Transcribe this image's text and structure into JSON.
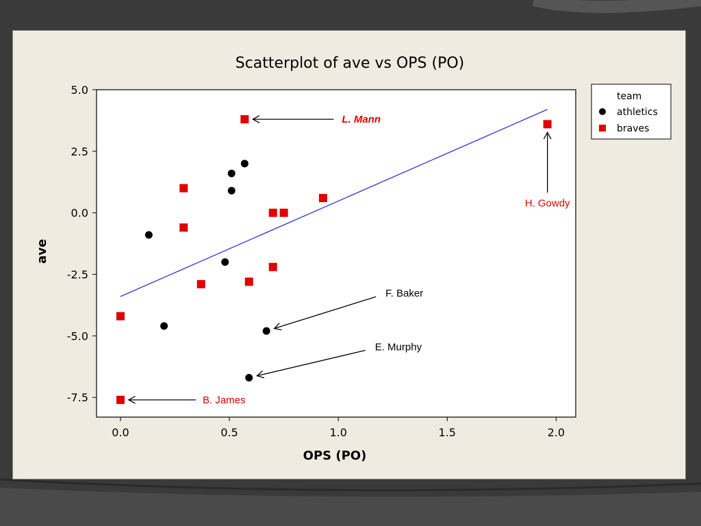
{
  "colors": {
    "background": "#3a3a3a",
    "panel": "#f0ebe1",
    "athletics": "#000000",
    "braves": "#e00000",
    "fit_line": "#3333dd",
    "annotation_red": "#e00000",
    "annotation_black": "#000000"
  },
  "chart_data": {
    "type": "scatter",
    "title": "Scatterplot of ave vs OPS (PO)",
    "xlabel": "OPS (PO)",
    "ylabel": "ave",
    "xlim": [
      -0.11,
      2.09
    ],
    "ylim": [
      -8.3,
      5.0
    ],
    "x_ticks": [
      "0.0",
      "0.5",
      "1.0",
      "1.5",
      "2.0"
    ],
    "y_ticks": [
      "5.0",
      "2.5",
      "0.0",
      "-2.5",
      "-5.0",
      "-7.5"
    ],
    "grid": false,
    "legend": {
      "title": "team",
      "position": "right",
      "entries": [
        {
          "label": "athletics",
          "marker": "circle",
          "color": "#000000"
        },
        {
          "label": "braves",
          "marker": "square",
          "color": "#e00000"
        }
      ]
    },
    "series": [
      {
        "name": "athletics",
        "marker": "circle",
        "color": "#000000",
        "points": [
          {
            "x": 0.13,
            "y": -0.9
          },
          {
            "x": 0.2,
            "y": -4.6
          },
          {
            "x": 0.48,
            "y": -2.0
          },
          {
            "x": 0.51,
            "y": 1.6
          },
          {
            "x": 0.51,
            "y": 0.9
          },
          {
            "x": 0.57,
            "y": 2.0
          },
          {
            "x": 0.67,
            "y": -4.8
          },
          {
            "x": 0.59,
            "y": -6.7
          }
        ]
      },
      {
        "name": "braves",
        "marker": "square",
        "color": "#e00000",
        "points": [
          {
            "x": 0.0,
            "y": -4.2
          },
          {
            "x": 0.0,
            "y": -7.6
          },
          {
            "x": 0.29,
            "y": 1.0
          },
          {
            "x": 0.29,
            "y": -0.6
          },
          {
            "x": 0.37,
            "y": -2.9
          },
          {
            "x": 0.57,
            "y": 3.8
          },
          {
            "x": 0.59,
            "y": -2.8
          },
          {
            "x": 0.7,
            "y": 0.0
          },
          {
            "x": 0.7,
            "y": -2.2
          },
          {
            "x": 0.75,
            "y": 0.0
          },
          {
            "x": 0.93,
            "y": 0.6
          },
          {
            "x": 1.96,
            "y": 3.6
          }
        ]
      }
    ],
    "fit_line": {
      "x0": 0.0,
      "y0": -3.4,
      "x1": 1.96,
      "y1": 4.2,
      "color": "#3333dd"
    },
    "annotations": [
      {
        "text": "L. Mann",
        "color": "#e00000",
        "italic": true,
        "bold": true,
        "target": {
          "x": 0.57,
          "y": 3.8
        }
      },
      {
        "text": "H. Gowdy",
        "color": "#e00000",
        "italic": false,
        "bold": false,
        "target": {
          "x": 1.96,
          "y": 3.6
        }
      },
      {
        "text": "F. Baker",
        "color": "#000000",
        "italic": false,
        "bold": false,
        "target": {
          "x": 0.67,
          "y": -4.8
        }
      },
      {
        "text": "E. Murphy",
        "color": "#000000",
        "italic": false,
        "bold": false,
        "target": {
          "x": 0.59,
          "y": -6.7
        }
      },
      {
        "text": "B. James",
        "color": "#e00000",
        "italic": false,
        "bold": false,
        "target": {
          "x": 0.0,
          "y": -7.6
        }
      }
    ]
  }
}
